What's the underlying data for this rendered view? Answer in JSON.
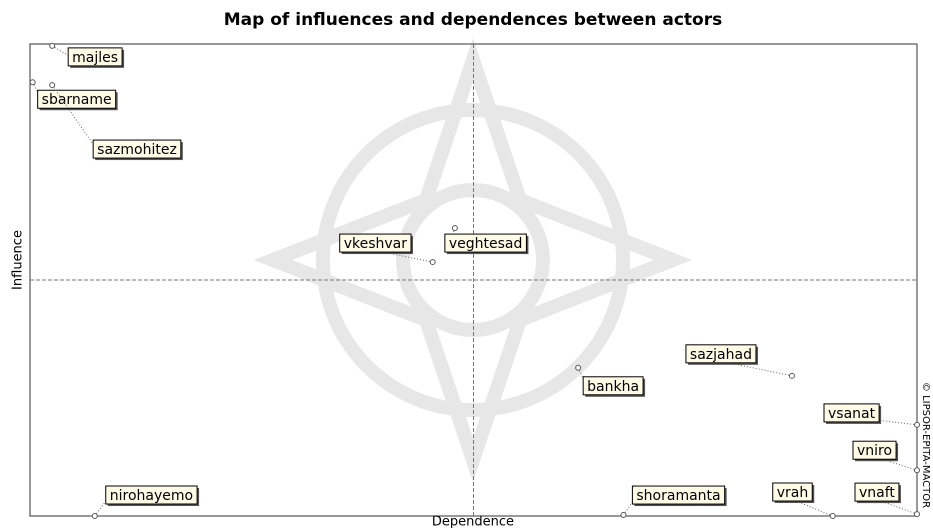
{
  "chart_data": {
    "type": "scatter",
    "title": "Map of influences and dependences between actors",
    "x_label": "Dependence",
    "y_label": "Influence",
    "credit": "© LIPSOR-EPITA-MACTOR",
    "point_labels": [
      "majles",
      "sbarname",
      "sazmohitez",
      "veghtesad",
      "vkeshvar",
      "sazjahad",
      "bankha",
      "vsanat",
      "vniro",
      "vnaft",
      "vrah",
      "shoramanta",
      "nirohayemo"
    ],
    "x": [
      0.025,
      0.003,
      0.025,
      0.479,
      0.454,
      0.859,
      0.618,
      1.0,
      1.0,
      1.0,
      0.905,
      0.669,
      0.073
    ],
    "values": [
      0.996,
      0.919,
      0.913,
      0.61,
      0.538,
      0.297,
      0.314,
      0.193,
      0.097,
      0.004,
      0.0,
      0.002,
      0.0
    ],
    "xlim": [
      0,
      1
    ],
    "ylim": [
      0,
      1
    ],
    "color": "#555555"
  }
}
